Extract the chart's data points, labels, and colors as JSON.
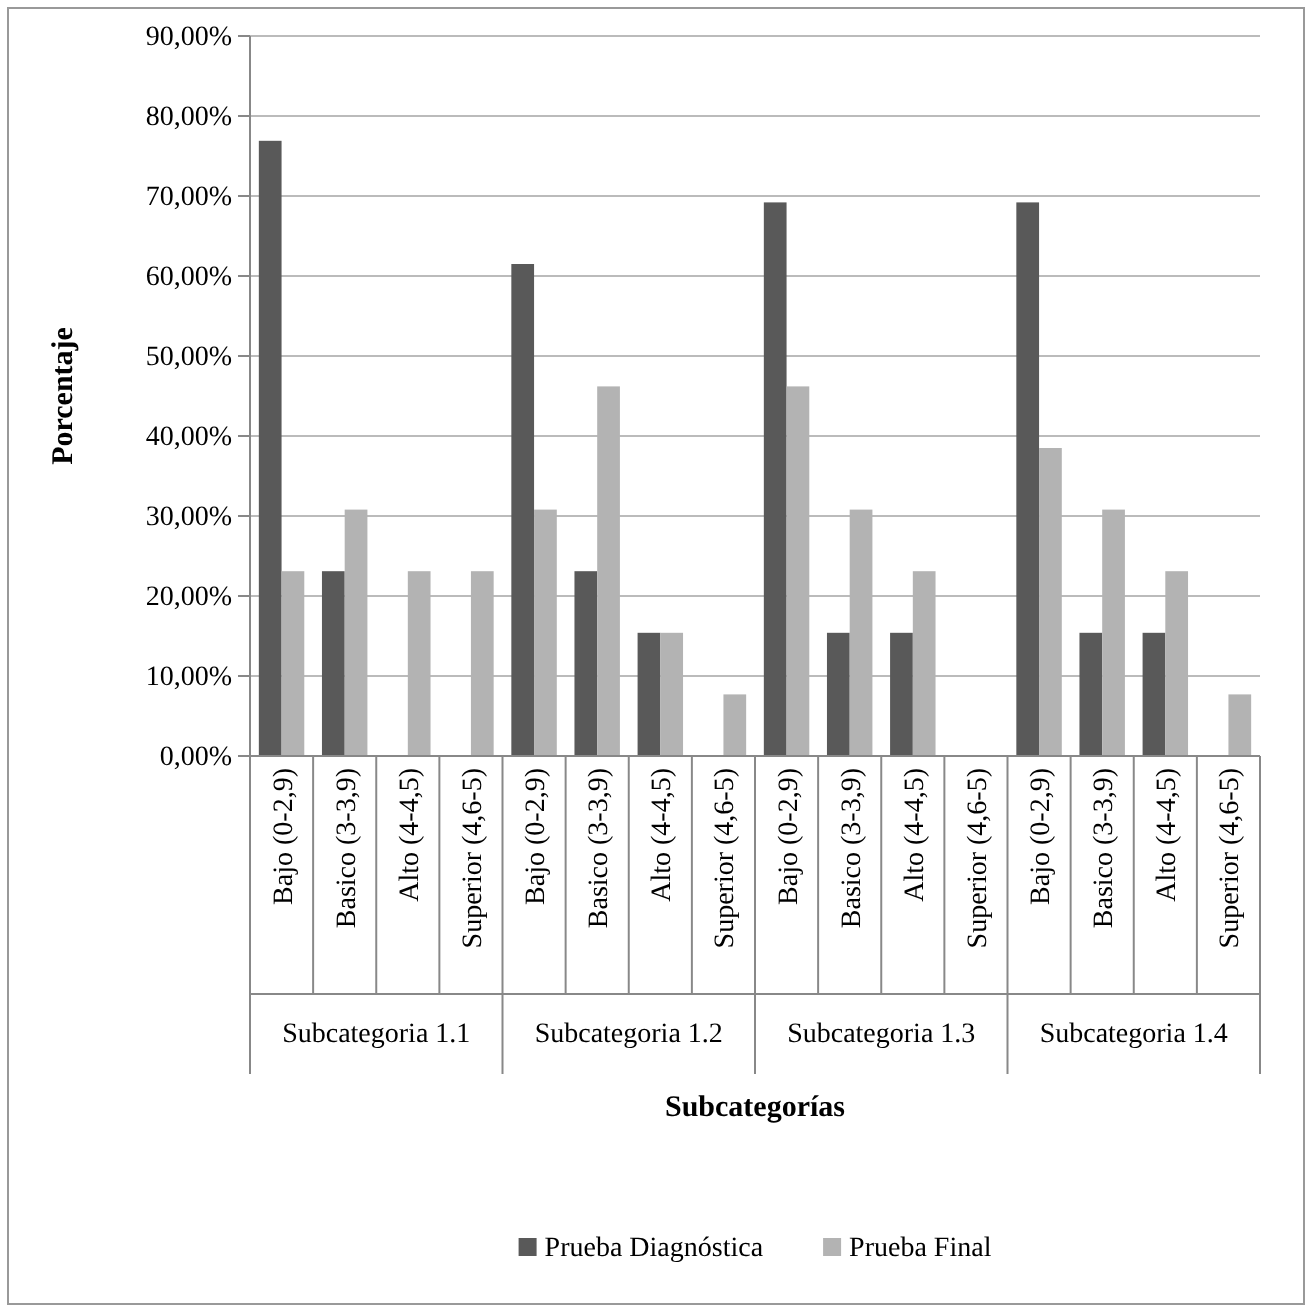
{
  "chart_data": {
    "type": "bar",
    "xlabel": "Subcategorías",
    "ylabel": "Porcentaje",
    "categories": [
      "Bajo (0-2,9)",
      "Basico (3-3,9)",
      "Alto (4-4,5)",
      "Superior (4,6-5)",
      "Bajo (0-2,9)",
      "Basico (3-3,9)",
      "Alto (4-4,5)",
      "Superior (4,6-5)",
      "Bajo (0-2,9)",
      "Basico (3-3,9)",
      "Alto (4-4,5)",
      "Superior (4,6-5)",
      "Bajo (0-2,9)",
      "Basico (3-3,9)",
      "Alto (4-4,5)",
      "Superior (4,6-5)"
    ],
    "annotations": [
      "Subcategoria 1.1",
      "Subcategoria 1.2",
      "Subcategoria 1.3",
      "Subcategoria 1.4"
    ],
    "series": [
      {
        "name": "Prueba Diagnóstica",
        "color": "#595959",
        "values": [
          76.9,
          23.1,
          0,
          0,
          61.5,
          23.1,
          15.4,
          0,
          69.2,
          15.4,
          15.4,
          0,
          69.2,
          15.4,
          15.4,
          0
        ]
      },
      {
        "name": "Prueba Final",
        "color": "#b3b3b3",
        "values": [
          23.1,
          30.8,
          23.1,
          23.1,
          30.8,
          46.2,
          15.4,
          7.7,
          46.2,
          30.8,
          23.1,
          0,
          38.5,
          30.8,
          23.1,
          7.7
        ]
      }
    ],
    "ylim": [
      0,
      90
    ],
    "yticks": [
      {
        "value": 0,
        "label": "0,00%"
      },
      {
        "value": 10,
        "label": "10,00%"
      },
      {
        "value": 20,
        "label": "20,00%"
      },
      {
        "value": 30,
        "label": "30,00%"
      },
      {
        "value": 40,
        "label": "40,00%"
      },
      {
        "value": 50,
        "label": "50,00%"
      },
      {
        "value": 60,
        "label": "60,00%"
      },
      {
        "value": 70,
        "label": "70,00%"
      },
      {
        "value": 80,
        "label": "80,00%"
      },
      {
        "value": 90,
        "label": "90,00%"
      }
    ],
    "grid": "y",
    "legend": "bottom"
  }
}
